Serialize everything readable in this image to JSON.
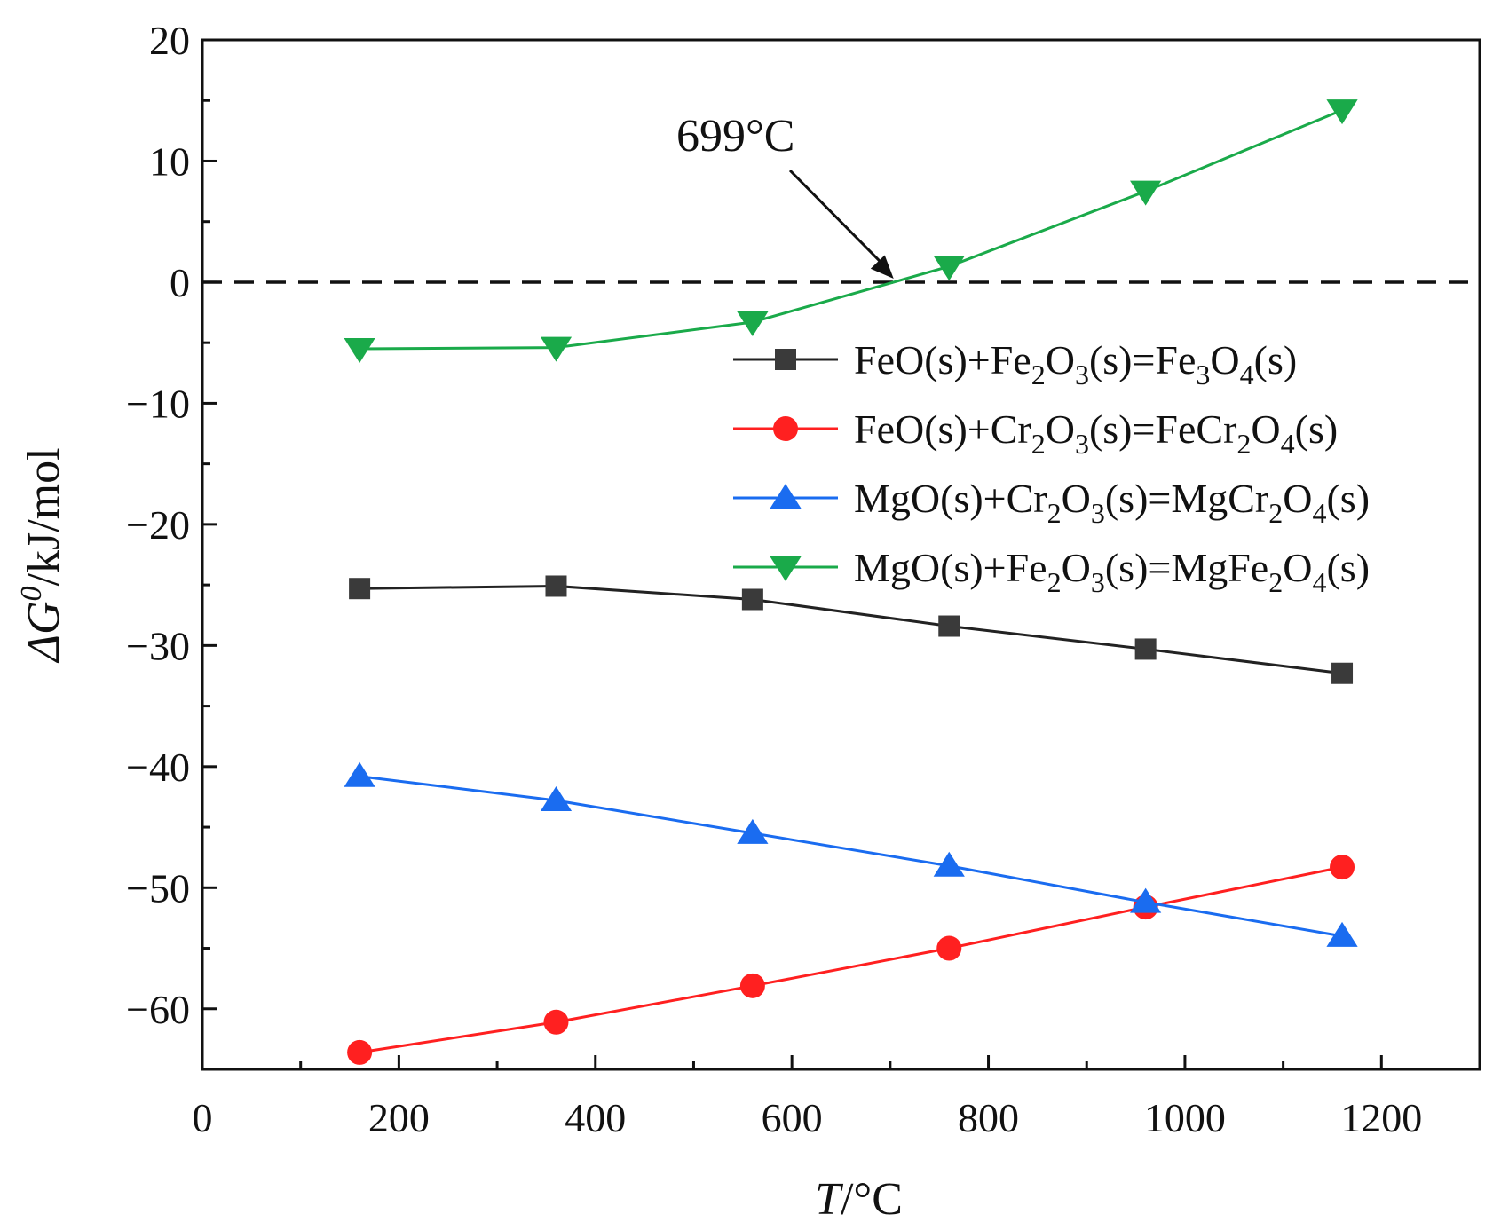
{
  "chart_data": {
    "type": "line",
    "xlabel": {
      "var": "T",
      "unit": "/°C"
    },
    "ylabel": {
      "var": "ΔG",
      "sup": "0",
      "unit": "/kJ/mol"
    },
    "xlim": [
      0,
      1300
    ],
    "ylim": [
      -65,
      20
    ],
    "x_ticks": [
      0,
      200,
      400,
      600,
      800,
      1000,
      1200
    ],
    "y_ticks": [
      20,
      10,
      0,
      -10,
      -20,
      -30,
      -40,
      -50,
      -60
    ],
    "y_tick_labels": [
      "20",
      "10",
      "0",
      "−10",
      "−20",
      "−30",
      "−40",
      "−50",
      "−60"
    ],
    "grid": false,
    "legend_position": "upper-right",
    "reference_line": {
      "y": 0,
      "style": "dashed"
    },
    "annotation": {
      "text": "699°C",
      "x": 699,
      "y": 0
    },
    "x": [
      160,
      360,
      560,
      760,
      960,
      1160
    ],
    "series": [
      {
        "name": "FeO(s)+Fe₂O₃(s)=Fe₃O₄(s)",
        "parts": [
          [
            "FeO(s)+Fe",
            ""
          ],
          [
            "2",
            "sub"
          ],
          [
            "O",
            ""
          ],
          [
            "3",
            "sub"
          ],
          [
            "(s)=Fe",
            ""
          ],
          [
            "3",
            "sub"
          ],
          [
            "O",
            ""
          ],
          [
            "4",
            "sub"
          ],
          [
            "(s)",
            ""
          ]
        ],
        "marker": "square",
        "color": "#3a3a3a",
        "line_color": "#222222",
        "values": [
          -25.3,
          -25.1,
          -26.2,
          -28.4,
          -30.3,
          -32.3
        ]
      },
      {
        "name": "FeO(s)+Cr₂O₃(s)=FeCr₂O₄(s)",
        "parts": [
          [
            "FeO(s)+Cr",
            ""
          ],
          [
            "2",
            "sub"
          ],
          [
            "O",
            ""
          ],
          [
            "3",
            "sub"
          ],
          [
            "(s)=FeCr",
            ""
          ],
          [
            "2",
            "sub"
          ],
          [
            "O",
            ""
          ],
          [
            "4",
            "sub"
          ],
          [
            "(s)",
            ""
          ]
        ],
        "marker": "circle",
        "color": "#ff2020",
        "line_color": "#ff2020",
        "values": [
          -63.6,
          -61.1,
          -58.1,
          -55.0,
          -51.6,
          -48.3
        ]
      },
      {
        "name": "MgO(s)+Cr₂O₃(s)=MgCr₂O₄(s)",
        "parts": [
          [
            "MgO(s)+Cr",
            ""
          ],
          [
            "2",
            "sub"
          ],
          [
            "O",
            ""
          ],
          [
            "3",
            "sub"
          ],
          [
            "(s)=MgCr",
            ""
          ],
          [
            "2",
            "sub"
          ],
          [
            "O",
            ""
          ],
          [
            "4",
            "sub"
          ],
          [
            "(s)",
            ""
          ]
        ],
        "marker": "triangle-up",
        "color": "#1a6cf0",
        "line_color": "#1a6cf0",
        "values": [
          -40.8,
          -42.8,
          -45.5,
          -48.2,
          -51.2,
          -54.0
        ]
      },
      {
        "name": "MgO(s)+Fe₂O₃(s)=MgFe₂O₄(s)",
        "parts": [
          [
            "MgO(s)+Fe",
            ""
          ],
          [
            "2",
            "sub"
          ],
          [
            "O",
            ""
          ],
          [
            "3",
            "sub"
          ],
          [
            "(s)=MgFe",
            ""
          ],
          [
            "2",
            "sub"
          ],
          [
            "O",
            ""
          ],
          [
            "4",
            "sub"
          ],
          [
            "(s)",
            ""
          ]
        ],
        "marker": "triangle-down",
        "color": "#1aaa4a",
        "line_color": "#1aaa4a",
        "values": [
          -5.5,
          -5.4,
          -3.3,
          1.3,
          7.5,
          14.2
        ]
      }
    ]
  }
}
